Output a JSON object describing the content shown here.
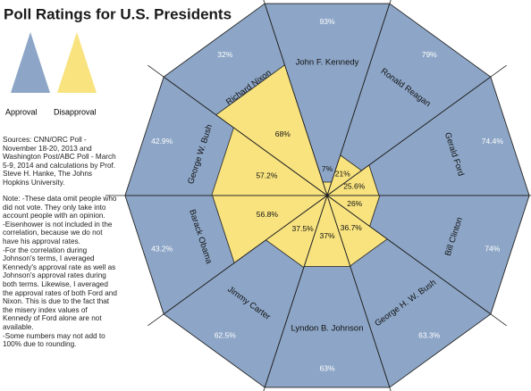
{
  "chart_data": {
    "type": "radial",
    "title": "Poll Ratings for U.S. Presidents",
    "categories": [
      "John F. Kennedy",
      "Ronald Reagan",
      "Gerald Ford",
      "Bill Clinton",
      "George H. W. Bush",
      "Lyndon B. Johnson",
      "Jimmy Carter",
      "Barack Obama",
      "George W. Bush",
      "Richard Nixon"
    ],
    "series": [
      {
        "name": "Approval",
        "color": "#8da6c7",
        "values": [
          93,
          79,
          74.4,
          74,
          63.3,
          63,
          62.5,
          43.2,
          42.9,
          32
        ],
        "value_labels": [
          "93%",
          "79%",
          "74.4%",
          "74%",
          "63.3%",
          "63%",
          "62.5%",
          "43.2%",
          "42.9%",
          "32%"
        ]
      },
      {
        "name": "Disapproval",
        "color": "#f8e37f",
        "values": [
          7,
          21,
          25.6,
          26,
          36.7,
          37,
          37.5,
          56.8,
          57.2,
          68
        ],
        "value_labels": [
          "7%",
          "21%",
          "25.6%",
          "26%",
          "36.7%",
          "37%",
          "37.5%",
          "56.8%",
          "57.2%",
          "68%"
        ]
      }
    ],
    "rlim": [
      0,
      100
    ],
    "sources": "Sources: CNN/ORC Poll - November 18-20, 2013 and Washington Post/ABC Poll - March 5-9, 2014 and calculations by Prof. Steve H. Hanke, The Johns Hopkins University.",
    "notes": [
      "Note: -These data omit people who did not vote. They only take into account people with an opinion.",
      "-Eisenhower is not included in the correlation, because we do not have his approval rates.",
      "-For the correlation during Johnson's terms, I averaged Kennedy's approval rate as well as Johnson's approval rates during both terms. Likewise, I averaged the approval rates of both Ford and Nixon. This is due to the fact that the misery index values of Kennedy of Ford alone are not available.",
      "-Some numbers may not add to 100% due to rounding."
    ]
  }
}
